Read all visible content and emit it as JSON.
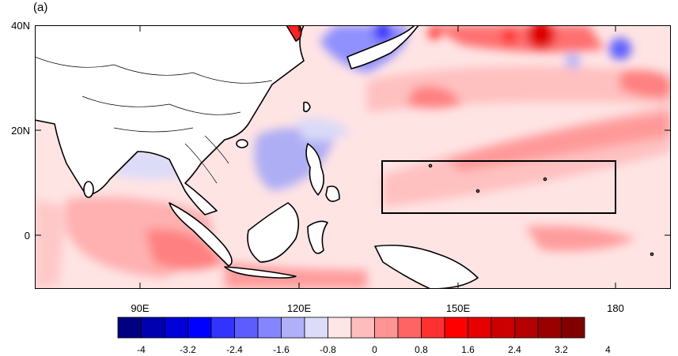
{
  "panel_label": "(a)",
  "lat_labels": [
    "40N",
    "20N",
    "0"
  ],
  "lon_labels": [
    "90E",
    "120E",
    "150E",
    "180"
  ],
  "colorbar": {
    "colors": [
      "#000080",
      "#0000b0",
      "#0000d8",
      "#0000ff",
      "#3333ff",
      "#5c5cff",
      "#8585ff",
      "#b0b0f8",
      "#dcdcf8",
      "#ffe6e6",
      "#ffbcbc",
      "#ff9494",
      "#ff6464",
      "#ff3030",
      "#ff0000",
      "#e60000",
      "#cc0000",
      "#b40000",
      "#9a0000",
      "#800000"
    ],
    "tick_labels": [
      "-4",
      "-3.2",
      "-2.4",
      "-1.6",
      "-0.8",
      "0",
      "0.8",
      "1.6",
      "2.4",
      "3.2",
      "4"
    ]
  },
  "colors": {
    "land": "#ffffff",
    "coast": "#000000",
    "box": "#000000",
    "background_anomaly": "#ffe4e4"
  }
}
